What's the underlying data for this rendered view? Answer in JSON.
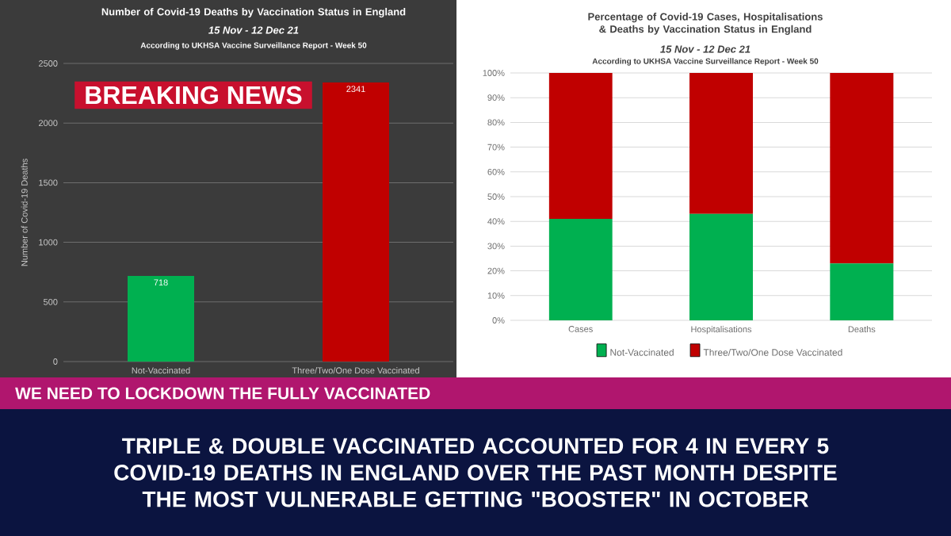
{
  "chart_data": [
    {
      "type": "bar",
      "title": "Number of Covid-19 Deaths by Vaccination Status in England",
      "subtitle": "15 Nov - 12 Dec 21",
      "ylabel": "Number of Covid-19 Deaths",
      "categories": [
        "Not-Vaccinated",
        "Three/Two/One Dose Vaccinated"
      ],
      "values": [
        718,
        2341
      ],
      "colors": [
        "#00b050",
        "#c00000"
      ],
      "ylim": [
        0,
        2500
      ],
      "yticks": [
        0,
        500,
        1000,
        1500,
        2000,
        2500
      ],
      "grid": "y",
      "data_labels": true,
      "legend": false,
      "annotations": [
        "According to UKHSA Vaccine Surveillance Report - Week 50",
        "BREAKING NEWS",
        "WE NEED TO LOCKDOWN THE FULLY VACCINATED",
        "TRIPLE & DOUBLE VACCINATED ACCOUNTED FOR 4 IN EVERY 5 COVID-19 DEATHS IN ENGLAND OVER THE PAST MONTH DESPITE THE MOST VULNERABLE GETTING \"BOOSTER\" IN OCTOBER"
      ]
    },
    {
      "type": "bar",
      "stacked": true,
      "title": "Percentage of Covid-19 Cases, Hospitalisations & Deaths by Vaccination Status in England",
      "subtitle": "15 Nov - 12 Dec 21",
      "categories": [
        "Cases",
        "Hospitalisations",
        "Deaths"
      ],
      "series": [
        {
          "name": "Not-Vaccinated",
          "color": "#00b050",
          "values": [
            41,
            43,
            23
          ]
        },
        {
          "name": "Three/Two/One Dose Vaccinated",
          "color": "#c00000",
          "values": [
            59,
            57,
            77
          ]
        }
      ],
      "ylim": [
        0,
        100
      ],
      "yticks": [
        {
          "value": 0,
          "label": "0%"
        },
        {
          "value": 10,
          "label": "10%"
        },
        {
          "value": 20,
          "label": "20%"
        },
        {
          "value": 30,
          "label": "30%"
        },
        {
          "value": 40,
          "label": "40%"
        },
        {
          "value": 50,
          "label": "50%"
        },
        {
          "value": 60,
          "label": "60%"
        },
        {
          "value": 70,
          "label": "70%"
        },
        {
          "value": 80,
          "label": "80%"
        },
        {
          "value": 90,
          "label": "90%"
        },
        {
          "value": 100,
          "label": "100%"
        }
      ],
      "grid": "y",
      "legend": "bottom",
      "annotations": [
        "According to UKHSA Vaccine Surveillance Report - Week 50"
      ]
    }
  ]
}
